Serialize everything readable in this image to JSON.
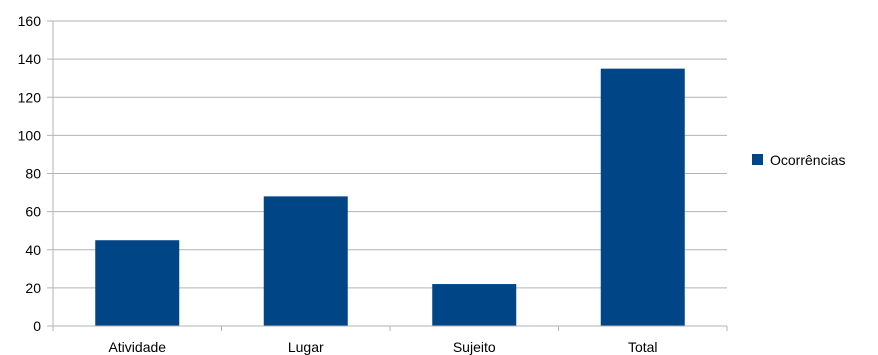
{
  "chart_data": {
    "type": "bar",
    "categories": [
      "Atividade",
      "Lugar",
      "Sujeito",
      "Total"
    ],
    "series": [
      {
        "name": "Ocorrências",
        "values": [
          45,
          68,
          22,
          135
        ],
        "color": "#004586"
      }
    ],
    "title": "",
    "xlabel": "",
    "ylabel": "",
    "ylim": [
      0,
      160
    ],
    "yticks": [
      "0",
      "20",
      "40",
      "60",
      "80",
      "100",
      "120",
      "140",
      "160"
    ],
    "grid": true,
    "legend_position": "right",
    "gridline_color": "#b3b3b3"
  }
}
